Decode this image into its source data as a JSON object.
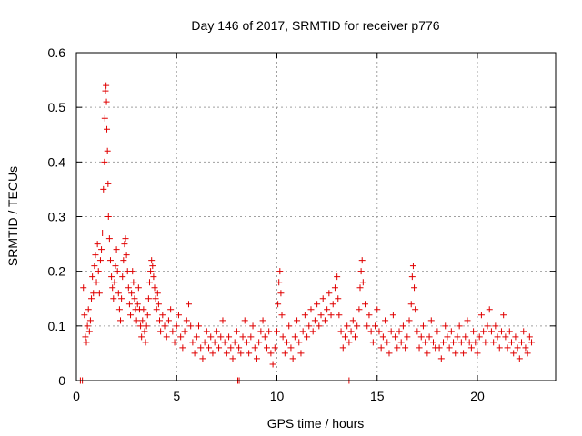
{
  "chart_data": {
    "type": "scatter",
    "title": "Day 146 of 2017, SRMTID for receiver p776",
    "xlabel": "GPS time / hours",
    "ylabel": "SRMTID / TECUs",
    "xlim": [
      0,
      23.9
    ],
    "ylim": [
      0,
      0.6
    ],
    "xticks": [
      0,
      5,
      10,
      15,
      20
    ],
    "xtick_labels": [
      "0",
      "5",
      "10",
      "15",
      "20"
    ],
    "yticks": [
      0,
      0.1,
      0.2,
      0.3,
      0.4,
      0.5,
      0.6
    ],
    "ytick_labels": [
      "0",
      "0.1",
      "0.2",
      "0.3",
      "0.4",
      "0.5",
      "0.6"
    ],
    "grid": true,
    "marker": "+",
    "color": "#e00000",
    "series": [
      {
        "name": "p776",
        "points": [
          [
            0.2,
            0.0
          ],
          [
            0.3,
            0.0
          ],
          [
            8.05,
            0.0
          ],
          [
            8.12,
            0.0
          ],
          [
            13.6,
            0.0
          ],
          [
            0.35,
            0.17
          ],
          [
            0.4,
            0.12
          ],
          [
            0.45,
            0.08
          ],
          [
            0.5,
            0.07
          ],
          [
            0.55,
            0.1
          ],
          [
            0.6,
            0.13
          ],
          [
            0.65,
            0.09
          ],
          [
            0.7,
            0.11
          ],
          [
            0.75,
            0.15
          ],
          [
            0.8,
            0.19
          ],
          [
            0.85,
            0.16
          ],
          [
            0.9,
            0.21
          ],
          [
            0.95,
            0.23
          ],
          [
            1.0,
            0.18
          ],
          [
            1.05,
            0.25
          ],
          [
            1.1,
            0.2
          ],
          [
            1.15,
            0.16
          ],
          [
            1.2,
            0.22
          ],
          [
            1.25,
            0.24
          ],
          [
            1.3,
            0.27
          ],
          [
            1.35,
            0.35
          ],
          [
            1.4,
            0.4
          ],
          [
            1.42,
            0.48
          ],
          [
            1.45,
            0.53
          ],
          [
            1.48,
            0.54
          ],
          [
            1.5,
            0.51
          ],
          [
            1.52,
            0.46
          ],
          [
            1.55,
            0.42
          ],
          [
            1.58,
            0.36
          ],
          [
            1.6,
            0.3
          ],
          [
            1.65,
            0.26
          ],
          [
            1.7,
            0.22
          ],
          [
            1.75,
            0.19
          ],
          [
            1.8,
            0.17
          ],
          [
            1.85,
            0.15
          ],
          [
            1.9,
            0.18
          ],
          [
            1.95,
            0.21
          ],
          [
            2.0,
            0.24
          ],
          [
            2.05,
            0.2
          ],
          [
            2.1,
            0.16
          ],
          [
            2.15,
            0.13
          ],
          [
            2.2,
            0.11
          ],
          [
            2.25,
            0.15
          ],
          [
            2.3,
            0.19
          ],
          [
            2.35,
            0.22
          ],
          [
            2.4,
            0.25
          ],
          [
            2.45,
            0.26
          ],
          [
            2.5,
            0.23
          ],
          [
            2.55,
            0.2
          ],
          [
            2.6,
            0.17
          ],
          [
            2.65,
            0.14
          ],
          [
            2.7,
            0.12
          ],
          [
            2.75,
            0.16
          ],
          [
            2.8,
            0.2
          ],
          [
            2.85,
            0.18
          ],
          [
            2.9,
            0.15
          ],
          [
            2.95,
            0.13
          ],
          [
            3.0,
            0.11
          ],
          [
            3.05,
            0.14
          ],
          [
            3.1,
            0.17
          ],
          [
            3.15,
            0.13
          ],
          [
            3.2,
            0.1
          ],
          [
            3.25,
            0.08
          ],
          [
            3.3,
            0.11
          ],
          [
            3.35,
            0.13
          ],
          [
            3.4,
            0.09
          ],
          [
            3.45,
            0.07
          ],
          [
            3.5,
            0.1
          ],
          [
            3.55,
            0.12
          ],
          [
            3.6,
            0.15
          ],
          [
            3.65,
            0.18
          ],
          [
            3.7,
            0.2
          ],
          [
            3.75,
            0.22
          ],
          [
            3.8,
            0.21
          ],
          [
            3.85,
            0.19
          ],
          [
            3.9,
            0.17
          ],
          [
            3.95,
            0.15
          ],
          [
            4.0,
            0.13
          ],
          [
            4.05,
            0.16
          ],
          [
            4.1,
            0.14
          ],
          [
            4.15,
            0.11
          ],
          [
            4.2,
            0.09
          ],
          [
            4.3,
            0.12
          ],
          [
            4.4,
            0.1
          ],
          [
            4.5,
            0.08
          ],
          [
            4.6,
            0.11
          ],
          [
            4.7,
            0.13
          ],
          [
            4.8,
            0.09
          ],
          [
            4.9,
            0.07
          ],
          [
            5.0,
            0.1
          ],
          [
            5.1,
            0.12
          ],
          [
            5.2,
            0.08
          ],
          [
            5.3,
            0.06
          ],
          [
            5.4,
            0.09
          ],
          [
            5.5,
            0.11
          ],
          [
            5.6,
            0.14
          ],
          [
            5.7,
            0.1
          ],
          [
            5.8,
            0.07
          ],
          [
            5.9,
            0.05
          ],
          [
            6.0,
            0.08
          ],
          [
            6.1,
            0.1
          ],
          [
            6.2,
            0.06
          ],
          [
            6.3,
            0.04
          ],
          [
            6.4,
            0.07
          ],
          [
            6.5,
            0.09
          ],
          [
            6.6,
            0.06
          ],
          [
            6.7,
            0.08
          ],
          [
            6.8,
            0.05
          ],
          [
            6.9,
            0.07
          ],
          [
            7.0,
            0.09
          ],
          [
            7.1,
            0.06
          ],
          [
            7.2,
            0.08
          ],
          [
            7.3,
            0.11
          ],
          [
            7.4,
            0.07
          ],
          [
            7.5,
            0.05
          ],
          [
            7.6,
            0.08
          ],
          [
            7.7,
            0.06
          ],
          [
            7.8,
            0.04
          ],
          [
            7.9,
            0.07
          ],
          [
            8.0,
            0.09
          ],
          [
            8.1,
            0.06
          ],
          [
            8.2,
            0.05
          ],
          [
            8.3,
            0.08
          ],
          [
            8.4,
            0.11
          ],
          [
            8.5,
            0.07
          ],
          [
            8.6,
            0.05
          ],
          [
            8.7,
            0.08
          ],
          [
            8.8,
            0.1
          ],
          [
            8.9,
            0.06
          ],
          [
            9.0,
            0.04
          ],
          [
            9.1,
            0.07
          ],
          [
            9.2,
            0.09
          ],
          [
            9.3,
            0.11
          ],
          [
            9.4,
            0.08
          ],
          [
            9.5,
            0.06
          ],
          [
            9.6,
            0.09
          ],
          [
            9.7,
            0.05
          ],
          [
            9.8,
            0.03
          ],
          [
            9.9,
            0.06
          ],
          [
            10.0,
            0.09
          ],
          [
            10.05,
            0.14
          ],
          [
            10.1,
            0.18
          ],
          [
            10.15,
            0.2
          ],
          [
            10.2,
            0.16
          ],
          [
            10.25,
            0.12
          ],
          [
            10.3,
            0.08
          ],
          [
            10.4,
            0.05
          ],
          [
            10.5,
            0.07
          ],
          [
            10.6,
            0.1
          ],
          [
            10.7,
            0.06
          ],
          [
            10.8,
            0.04
          ],
          [
            10.9,
            0.08
          ],
          [
            11.0,
            0.11
          ],
          [
            11.1,
            0.07
          ],
          [
            11.2,
            0.05
          ],
          [
            11.3,
            0.09
          ],
          [
            11.4,
            0.12
          ],
          [
            11.5,
            0.08
          ],
          [
            11.6,
            0.1
          ],
          [
            11.7,
            0.13
          ],
          [
            11.8,
            0.09
          ],
          [
            11.9,
            0.11
          ],
          [
            12.0,
            0.14
          ],
          [
            12.1,
            0.1
          ],
          [
            12.2,
            0.12
          ],
          [
            12.3,
            0.15
          ],
          [
            12.4,
            0.11
          ],
          [
            12.5,
            0.13
          ],
          [
            12.6,
            0.16
          ],
          [
            12.7,
            0.12
          ],
          [
            12.8,
            0.14
          ],
          [
            12.9,
            0.17
          ],
          [
            13.0,
            0.19
          ],
          [
            13.05,
            0.15
          ],
          [
            13.1,
            0.12
          ],
          [
            13.2,
            0.09
          ],
          [
            13.3,
            0.06
          ],
          [
            13.4,
            0.08
          ],
          [
            13.5,
            0.1
          ],
          [
            13.6,
            0.07
          ],
          [
            13.7,
            0.09
          ],
          [
            13.8,
            0.11
          ],
          [
            13.9,
            0.08
          ],
          [
            14.0,
            0.1
          ],
          [
            14.1,
            0.13
          ],
          [
            14.15,
            0.17
          ],
          [
            14.2,
            0.2
          ],
          [
            14.25,
            0.22
          ],
          [
            14.3,
            0.18
          ],
          [
            14.4,
            0.14
          ],
          [
            14.5,
            0.1
          ],
          [
            14.6,
            0.12
          ],
          [
            14.7,
            0.09
          ],
          [
            14.8,
            0.07
          ],
          [
            14.9,
            0.1
          ],
          [
            15.0,
            0.13
          ],
          [
            15.1,
            0.09
          ],
          [
            15.2,
            0.06
          ],
          [
            15.3,
            0.08
          ],
          [
            15.4,
            0.11
          ],
          [
            15.5,
            0.07
          ],
          [
            15.6,
            0.05
          ],
          [
            15.7,
            0.09
          ],
          [
            15.8,
            0.12
          ],
          [
            15.9,
            0.08
          ],
          [
            16.0,
            0.06
          ],
          [
            16.1,
            0.09
          ],
          [
            16.2,
            0.07
          ],
          [
            16.3,
            0.1
          ],
          [
            16.4,
            0.06
          ],
          [
            16.5,
            0.08
          ],
          [
            16.6,
            0.11
          ],
          [
            16.7,
            0.14
          ],
          [
            16.75,
            0.19
          ],
          [
            16.8,
            0.21
          ],
          [
            16.85,
            0.17
          ],
          [
            16.9,
            0.13
          ],
          [
            17.0,
            0.09
          ],
          [
            17.1,
            0.06
          ],
          [
            17.2,
            0.08
          ],
          [
            17.3,
            0.1
          ],
          [
            17.4,
            0.07
          ],
          [
            17.5,
            0.05
          ],
          [
            17.6,
            0.08
          ],
          [
            17.7,
            0.11
          ],
          [
            17.8,
            0.07
          ],
          [
            17.9,
            0.06
          ],
          [
            18.0,
            0.09
          ],
          [
            18.1,
            0.06
          ],
          [
            18.2,
            0.04
          ],
          [
            18.3,
            0.07
          ],
          [
            18.4,
            0.1
          ],
          [
            18.5,
            0.08
          ],
          [
            18.6,
            0.06
          ],
          [
            18.7,
            0.09
          ],
          [
            18.8,
            0.07
          ],
          [
            18.9,
            0.05
          ],
          [
            19.0,
            0.08
          ],
          [
            19.1,
            0.1
          ],
          [
            19.2,
            0.07
          ],
          [
            19.3,
            0.05
          ],
          [
            19.4,
            0.08
          ],
          [
            19.5,
            0.11
          ],
          [
            19.6,
            0.07
          ],
          [
            19.7,
            0.06
          ],
          [
            19.8,
            0.09
          ],
          [
            19.9,
            0.07
          ],
          [
            20.0,
            0.05
          ],
          [
            20.1,
            0.08
          ],
          [
            20.2,
            0.12
          ],
          [
            20.3,
            0.09
          ],
          [
            20.4,
            0.07
          ],
          [
            20.5,
            0.1
          ],
          [
            20.6,
            0.13
          ],
          [
            20.7,
            0.09
          ],
          [
            20.8,
            0.07
          ],
          [
            20.9,
            0.1
          ],
          [
            21.0,
            0.08
          ],
          [
            21.1,
            0.06
          ],
          [
            21.2,
            0.09
          ],
          [
            21.3,
            0.12
          ],
          [
            21.4,
            0.08
          ],
          [
            21.5,
            0.06
          ],
          [
            21.6,
            0.09
          ],
          [
            21.7,
            0.07
          ],
          [
            21.8,
            0.05
          ],
          [
            21.9,
            0.08
          ],
          [
            22.0,
            0.06
          ],
          [
            22.1,
            0.04
          ],
          [
            22.2,
            0.07
          ],
          [
            22.3,
            0.09
          ],
          [
            22.4,
            0.06
          ],
          [
            22.5,
            0.05
          ],
          [
            22.6,
            0.08
          ],
          [
            22.7,
            0.07
          ]
        ]
      }
    ]
  }
}
